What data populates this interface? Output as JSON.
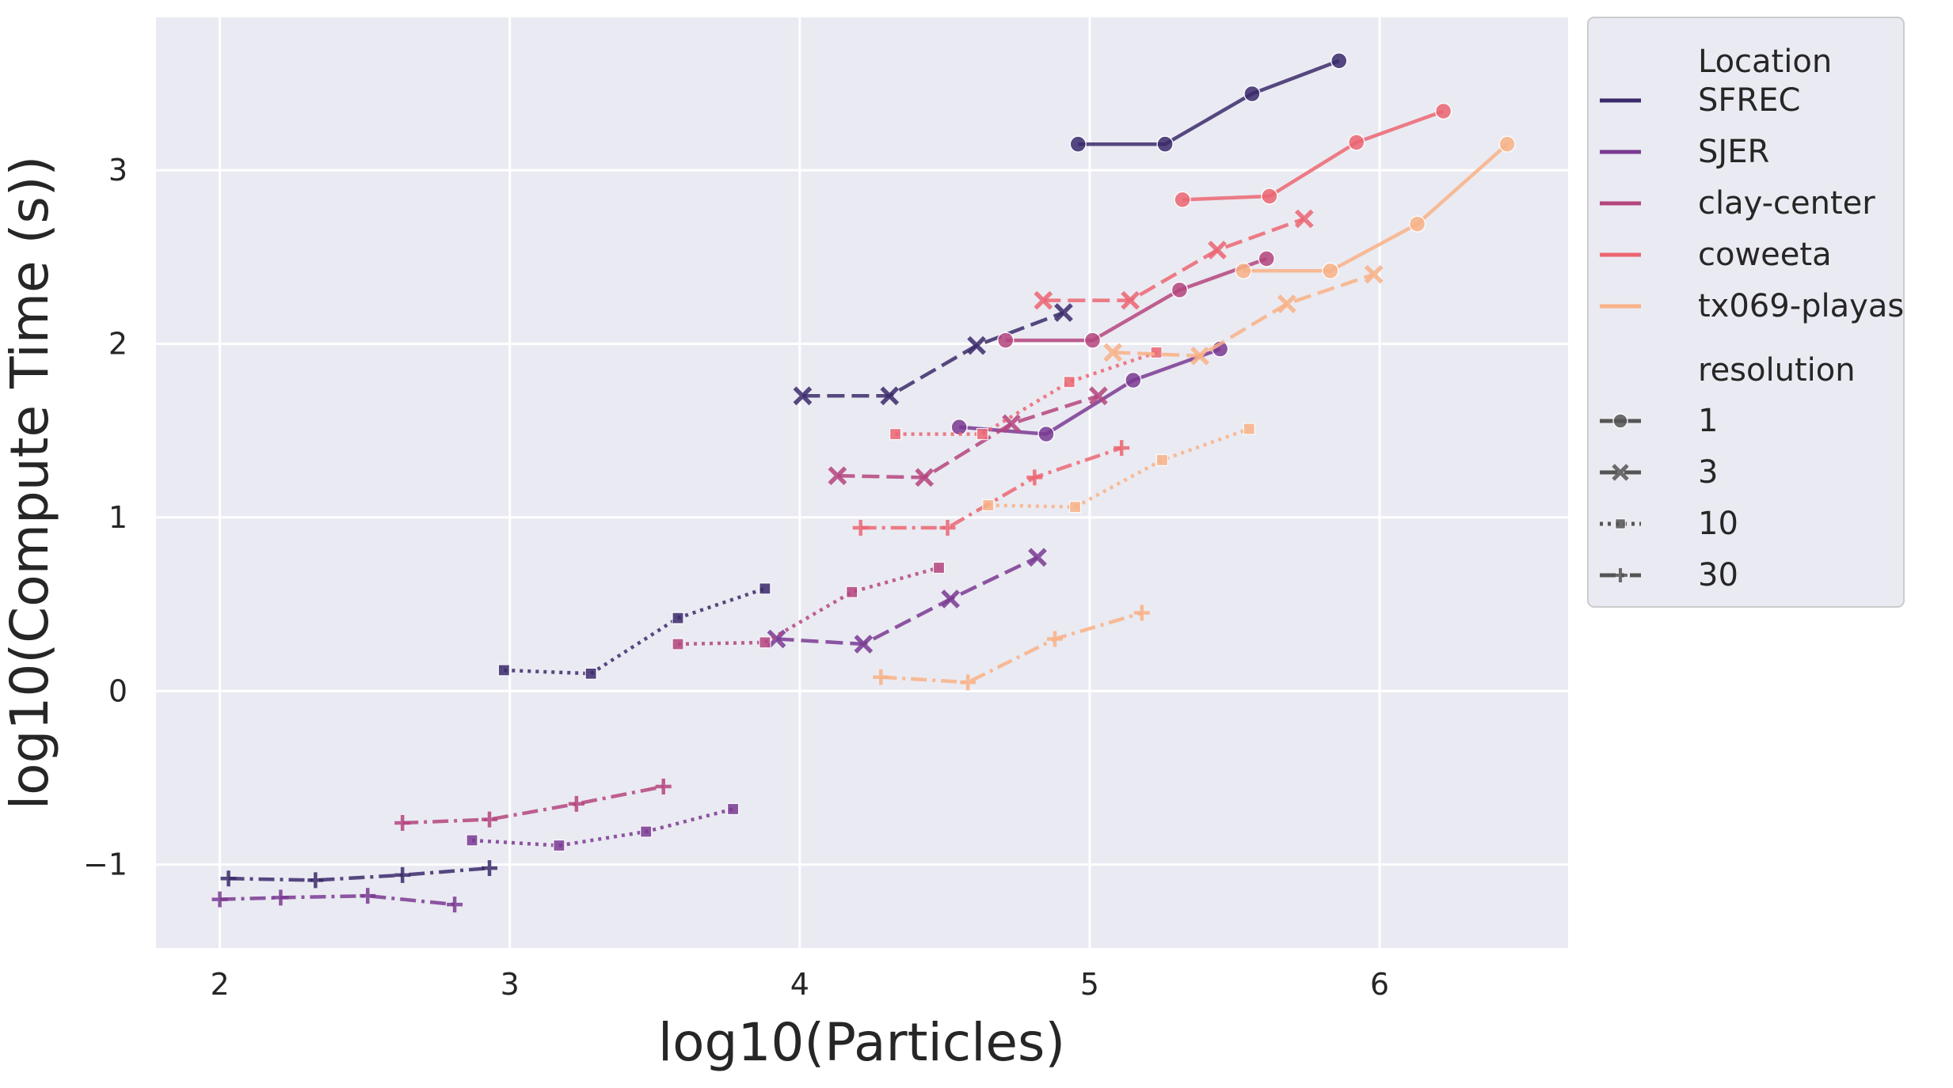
{
  "chart_data": {
    "type": "line",
    "xlabel": "log10(Particles)",
    "ylabel": "log10(Compute Time (s))",
    "xlim": [
      1.78,
      6.65
    ],
    "ylim": [
      -1.48,
      3.88
    ],
    "xticks": [
      2,
      3,
      4,
      5,
      6
    ],
    "yticks": [
      -1,
      0,
      1,
      2,
      3
    ],
    "ytick_labels": [
      "−1",
      "0",
      "1",
      "2",
      "3"
    ],
    "grid": true,
    "background": "#eaeaf2",
    "legend_position": "outside-right",
    "legend": {
      "hue_title": "Location",
      "style_title": "resolution",
      "locations": [
        {
          "name": "SFREC",
          "color": "#3b2a6b"
        },
        {
          "name": "SJER",
          "color": "#7a3a93"
        },
        {
          "name": "clay-center",
          "color": "#b5457e"
        },
        {
          "name": "coweeta",
          "color": "#ec6672"
        },
        {
          "name": "tx069-playas",
          "color": "#f9b286"
        }
      ],
      "resolutions": [
        {
          "name": "1",
          "marker": "circle",
          "dash": "solid"
        },
        {
          "name": "3",
          "marker": "x",
          "dash": "dashed"
        },
        {
          "name": "10",
          "marker": "square",
          "dash": "dotted"
        },
        {
          "name": "30",
          "marker": "plus",
          "dash": "dashdot"
        }
      ]
    },
    "series": [
      {
        "location": "SFREC",
        "resolution": "1",
        "x": [
          4.96,
          5.26,
          5.56,
          5.86
        ],
        "y": [
          3.15,
          3.15,
          3.44,
          3.63
        ]
      },
      {
        "location": "SFREC",
        "resolution": "3",
        "x": [
          4.01,
          4.31,
          4.61,
          4.91
        ],
        "y": [
          1.7,
          1.7,
          1.99,
          2.18
        ]
      },
      {
        "location": "SFREC",
        "resolution": "10",
        "x": [
          2.98,
          3.28,
          3.58,
          3.88
        ],
        "y": [
          0.12,
          0.1,
          0.42,
          0.59
        ]
      },
      {
        "location": "SFREC",
        "resolution": "30",
        "x": [
          2.03,
          2.33,
          2.63,
          2.93
        ],
        "y": [
          -1.08,
          -1.09,
          -1.06,
          -1.02
        ]
      },
      {
        "location": "SJER",
        "resolution": "1",
        "x": [
          4.55,
          4.85,
          5.15,
          5.45
        ],
        "y": [
          1.52,
          1.48,
          1.79,
          1.97
        ]
      },
      {
        "location": "SJER",
        "resolution": "3",
        "x": [
          3.92,
          4.22,
          4.52,
          4.82
        ],
        "y": [
          0.3,
          0.27,
          0.53,
          0.77
        ]
      },
      {
        "location": "SJER",
        "resolution": "10",
        "x": [
          2.87,
          3.17,
          3.47,
          3.77
        ],
        "y": [
          -0.86,
          -0.89,
          -0.81,
          -0.68
        ]
      },
      {
        "location": "SJER",
        "resolution": "30",
        "x": [
          2.0,
          2.21,
          2.51,
          2.81
        ],
        "y": [
          -1.2,
          -1.19,
          -1.18,
          -1.23
        ]
      },
      {
        "location": "clay-center",
        "resolution": "1",
        "x": [
          4.71,
          5.01,
          5.31,
          5.61
        ],
        "y": [
          2.02,
          2.02,
          2.31,
          2.49
        ]
      },
      {
        "location": "clay-center",
        "resolution": "3",
        "x": [
          4.13,
          4.43,
          4.73,
          5.03
        ],
        "y": [
          1.24,
          1.23,
          1.54,
          1.7
        ]
      },
      {
        "location": "clay-center",
        "resolution": "10",
        "x": [
          3.58,
          3.88,
          4.18,
          4.48
        ],
        "y": [
          0.27,
          0.28,
          0.57,
          0.71
        ]
      },
      {
        "location": "clay-center",
        "resolution": "30",
        "x": [
          2.63,
          2.93,
          3.23,
          3.53
        ],
        "y": [
          -0.76,
          -0.74,
          -0.65,
          -0.55
        ]
      },
      {
        "location": "coweeta",
        "resolution": "1",
        "x": [
          5.32,
          5.62,
          5.92,
          6.22
        ],
        "y": [
          2.83,
          2.85,
          3.16,
          3.34
        ]
      },
      {
        "location": "coweeta",
        "resolution": "3",
        "x": [
          4.84,
          5.14,
          5.44,
          5.74
        ],
        "y": [
          2.25,
          2.25,
          2.54,
          2.72
        ]
      },
      {
        "location": "coweeta",
        "resolution": "10",
        "x": [
          4.33,
          4.63,
          4.93,
          5.23
        ],
        "y": [
          1.48,
          1.48,
          1.78,
          1.95
        ]
      },
      {
        "location": "coweeta",
        "resolution": "30",
        "x": [
          4.21,
          4.51,
          4.81,
          5.11
        ],
        "y": [
          0.94,
          0.94,
          1.23,
          1.4
        ]
      },
      {
        "location": "tx069-playas",
        "resolution": "1",
        "x": [
          5.53,
          5.83,
          6.13,
          6.44
        ],
        "y": [
          2.42,
          2.42,
          2.69,
          3.15
        ]
      },
      {
        "location": "tx069-playas",
        "resolution": "3",
        "x": [
          5.08,
          5.38,
          5.68,
          5.98
        ],
        "y": [
          1.95,
          1.93,
          2.23,
          2.4
        ]
      },
      {
        "location": "tx069-playas",
        "resolution": "10",
        "x": [
          4.65,
          4.95,
          5.25,
          5.55
        ],
        "y": [
          1.07,
          1.06,
          1.33,
          1.51
        ]
      },
      {
        "location": "tx069-playas",
        "resolution": "30",
        "x": [
          4.28,
          4.58,
          4.88,
          5.18
        ],
        "y": [
          0.08,
          0.05,
          0.3,
          0.45
        ]
      }
    ]
  }
}
